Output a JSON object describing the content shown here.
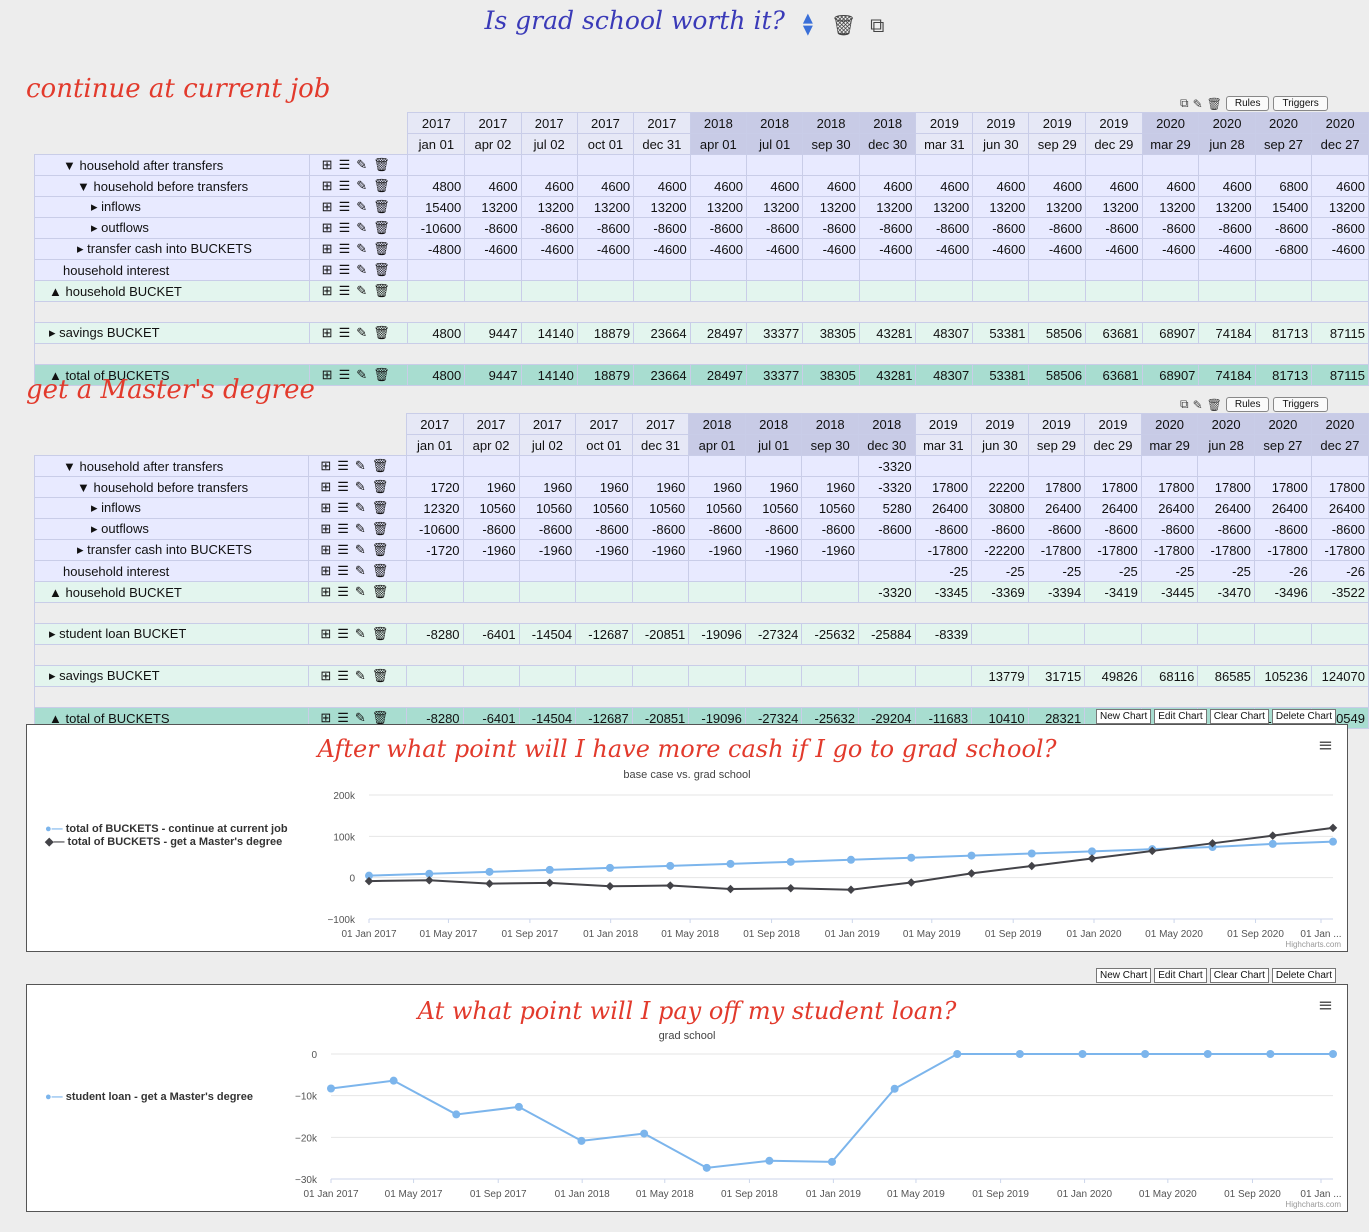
{
  "page_title": "Is grad school worth it?",
  "icons": {
    "reorder": "up-down-arrows-icon",
    "delete": "trash-icon",
    "copy": "copy-icon"
  },
  "mini_buttons": {
    "rules": "Rules",
    "triggers": "Triggers"
  },
  "columns": {
    "years": [
      "2017",
      "2017",
      "2017",
      "2017",
      "2017",
      "2018",
      "2018",
      "2018",
      "2018",
      "2019",
      "2019",
      "2019",
      "2019",
      "2020",
      "2020",
      "2020",
      "2020"
    ],
    "dates": [
      "jan 01",
      "apr 02",
      "jul 02",
      "oct 01",
      "dec 31",
      "apr 01",
      "jul 01",
      "sep 30",
      "dec 30",
      "mar 31",
      "jun 30",
      "sep 29",
      "dec 29",
      "mar 29",
      "jun 28",
      "sep 27",
      "dec 27"
    ]
  },
  "scenario1": {
    "title": "continue at current job",
    "rows": [
      {
        "label": "▼ household after transfers",
        "values": [
          "",
          "",
          "",
          "",
          "",
          "",
          "",
          "",
          "",
          "",
          "",
          "",
          "",
          "",
          "",
          "",
          ""
        ]
      },
      {
        "label": "▼ household before transfers",
        "values": [
          "4800",
          "4600",
          "4600",
          "4600",
          "4600",
          "4600",
          "4600",
          "4600",
          "4600",
          "4600",
          "4600",
          "4600",
          "4600",
          "4600",
          "4600",
          "6800",
          "4600"
        ]
      },
      {
        "label": "▸ inflows",
        "values": [
          "15400",
          "13200",
          "13200",
          "13200",
          "13200",
          "13200",
          "13200",
          "13200",
          "13200",
          "13200",
          "13200",
          "13200",
          "13200",
          "13200",
          "13200",
          "15400",
          "13200"
        ]
      },
      {
        "label": "▸ outflows",
        "values": [
          "-10600",
          "-8600",
          "-8600",
          "-8600",
          "-8600",
          "-8600",
          "-8600",
          "-8600",
          "-8600",
          "-8600",
          "-8600",
          "-8600",
          "-8600",
          "-8600",
          "-8600",
          "-8600",
          "-8600"
        ]
      },
      {
        "label": "▸ transfer cash into BUCKETS",
        "values": [
          "-4800",
          "-4600",
          "-4600",
          "-4600",
          "-4600",
          "-4600",
          "-4600",
          "-4600",
          "-4600",
          "-4600",
          "-4600",
          "-4600",
          "-4600",
          "-4600",
          "-4600",
          "-6800",
          "-4600"
        ]
      },
      {
        "label": "household interest",
        "values": [
          "",
          "",
          "",
          "",
          "",
          "",
          "",
          "",
          "",
          "",
          "",
          "",
          "",
          "",
          "",
          "",
          ""
        ]
      },
      {
        "label": "▲ household BUCKET",
        "values": [
          "",
          "",
          "",
          "",
          "",
          "",
          "",
          "",
          "",
          "",
          "",
          "",
          "",
          "",
          "",
          "",
          ""
        ]
      }
    ],
    "savings": {
      "label": "▸ savings BUCKET",
      "values": [
        "4800",
        "9447",
        "14140",
        "18879",
        "23664",
        "28497",
        "33377",
        "38305",
        "43281",
        "48307",
        "53381",
        "58506",
        "63681",
        "68907",
        "74184",
        "81713",
        "87115"
      ]
    },
    "total": {
      "label": "▲ total of BUCKETS",
      "values": [
        "4800",
        "9447",
        "14140",
        "18879",
        "23664",
        "28497",
        "33377",
        "38305",
        "43281",
        "48307",
        "53381",
        "58506",
        "63681",
        "68907",
        "74184",
        "81713",
        "87115"
      ]
    }
  },
  "scenario2": {
    "title": "get a Master's degree",
    "rows": [
      {
        "label": "▼ household after transfers",
        "values": [
          "",
          "",
          "",
          "",
          "",
          "",
          "",
          "",
          "-3320",
          "",
          "",
          "",
          "",
          "",
          "",
          "",
          ""
        ]
      },
      {
        "label": "▼ household before transfers",
        "values": [
          "1720",
          "1960",
          "1960",
          "1960",
          "1960",
          "1960",
          "1960",
          "1960",
          "-3320",
          "17800",
          "22200",
          "17800",
          "17800",
          "17800",
          "17800",
          "17800",
          "17800"
        ]
      },
      {
        "label": "▸ inflows",
        "values": [
          "12320",
          "10560",
          "10560",
          "10560",
          "10560",
          "10560",
          "10560",
          "10560",
          "5280",
          "26400",
          "30800",
          "26400",
          "26400",
          "26400",
          "26400",
          "26400",
          "26400"
        ]
      },
      {
        "label": "▸ outflows",
        "values": [
          "-10600",
          "-8600",
          "-8600",
          "-8600",
          "-8600",
          "-8600",
          "-8600",
          "-8600",
          "-8600",
          "-8600",
          "-8600",
          "-8600",
          "-8600",
          "-8600",
          "-8600",
          "-8600",
          "-8600"
        ]
      },
      {
        "label": "▸ transfer cash into BUCKETS",
        "values": [
          "-1720",
          "-1960",
          "-1960",
          "-1960",
          "-1960",
          "-1960",
          "-1960",
          "-1960",
          "",
          "-17800",
          "-22200",
          "-17800",
          "-17800",
          "-17800",
          "-17800",
          "-17800",
          "-17800"
        ]
      },
      {
        "label": "household interest",
        "values": [
          "",
          "",
          "",
          "",
          "",
          "",
          "",
          "",
          "",
          "-25",
          "-25",
          "-25",
          "-25",
          "-25",
          "-25",
          "-26",
          "-26"
        ]
      },
      {
        "label": "▲ household BUCKET",
        "values": [
          "",
          "",
          "",
          "",
          "",
          "",
          "",
          "",
          "-3320",
          "-3345",
          "-3369",
          "-3394",
          "-3419",
          "-3445",
          "-3470",
          "-3496",
          "-3522"
        ]
      }
    ],
    "loan": {
      "label": "▸ student loan BUCKET",
      "values": [
        "-8280",
        "-6401",
        "-14504",
        "-12687",
        "-20851",
        "-19096",
        "-27324",
        "-25632",
        "-25884",
        "-8339",
        "",
        "",
        "",
        "",
        "",
        "",
        ""
      ]
    },
    "savings": {
      "label": "▸ savings BUCKET",
      "values": [
        "",
        "",
        "",
        "",
        "",
        "",
        "",
        "",
        "",
        "",
        "13779",
        "31715",
        "49826",
        "68116",
        "86585",
        "105236",
        "124070"
      ]
    },
    "total": {
      "label": "▲ total of BUCKETS",
      "values": [
        "-8280",
        "-6401",
        "-14504",
        "-12687",
        "-20851",
        "-19096",
        "-27324",
        "-25632",
        "-29204",
        "-11683",
        "10410",
        "28321",
        "46407",
        "64671",
        "83115",
        "101740",
        "120549"
      ]
    }
  },
  "chart_buttons": {
    "new": "New Chart",
    "edit": "Edit Chart",
    "clear": "Clear Chart",
    "delete": "Delete Chart"
  },
  "credit": "Highcharts.com",
  "chart_data": [
    {
      "type": "line",
      "title": "After what point will I have more cash if I go to grad school?",
      "subtitle": "base case vs. grad school",
      "x": [
        "2017-01-01",
        "2017-04-02",
        "2017-07-02",
        "2017-10-01",
        "2017-12-31",
        "2018-04-01",
        "2018-07-01",
        "2018-09-30",
        "2018-12-30",
        "2019-03-31",
        "2019-06-30",
        "2019-09-29",
        "2019-12-29",
        "2020-03-29",
        "2020-06-28",
        "2020-09-27",
        "2020-12-27"
      ],
      "x_ticks": [
        "01 Jan 2017",
        "01 May 2017",
        "01 Sep 2017",
        "01 Jan 2018",
        "01 May 2018",
        "01 Sep 2018",
        "01 Jan 2019",
        "01 May 2019",
        "01 Sep 2019",
        "01 Jan 2020",
        "01 May 2020",
        "01 Sep 2020",
        "01 Jan ..."
      ],
      "y_ticks": [
        "200k",
        "100k",
        "0",
        "−100k"
      ],
      "ylim": [
        -100000,
        200000
      ],
      "series": [
        {
          "name": "total of BUCKETS - continue at current job",
          "color": "#7cb5ec",
          "values": [
            4800,
            9447,
            14140,
            18879,
            23664,
            28497,
            33377,
            38305,
            43281,
            48307,
            53381,
            58506,
            63681,
            68907,
            74184,
            81713,
            87115
          ]
        },
        {
          "name": "total of BUCKETS - get a Master's degree",
          "color": "#434348",
          "values": [
            -8280,
            -6401,
            -14504,
            -12687,
            -20851,
            -19096,
            -27324,
            -25632,
            -29204,
            -11683,
            10410,
            28321,
            46407,
            64671,
            83115,
            101740,
            120549
          ]
        }
      ]
    },
    {
      "type": "line",
      "title": "At what point will I pay off my student loan?",
      "subtitle": "grad school",
      "x": [
        "2017-01-01",
        "2017-04-02",
        "2017-07-02",
        "2017-10-01",
        "2017-12-31",
        "2018-04-01",
        "2018-07-01",
        "2018-09-30",
        "2018-12-30",
        "2019-03-31",
        "2019-06-30",
        "2019-09-29",
        "2019-12-29",
        "2020-03-29",
        "2020-06-28",
        "2020-09-27",
        "2020-12-27"
      ],
      "x_ticks": [
        "01 Jan 2017",
        "01 May 2017",
        "01 Sep 2017",
        "01 Jan 2018",
        "01 May 2018",
        "01 Sep 2018",
        "01 Jan 2019",
        "01 May 2019",
        "01 Sep 2019",
        "01 Jan 2020",
        "01 May 2020",
        "01 Sep 2020",
        "01 Jan ..."
      ],
      "y_ticks": [
        "0",
        "−10k",
        "−20k",
        "−30k"
      ],
      "ylim": [
        -30000,
        0
      ],
      "series": [
        {
          "name": "student loan - get a Master's degree",
          "color": "#7cb5ec",
          "values": [
            -8280,
            -6401,
            -14504,
            -12687,
            -20851,
            -19096,
            -27324,
            -25632,
            -25884,
            -8339,
            0,
            0,
            0,
            0,
            0,
            0,
            0
          ]
        }
      ]
    }
  ]
}
